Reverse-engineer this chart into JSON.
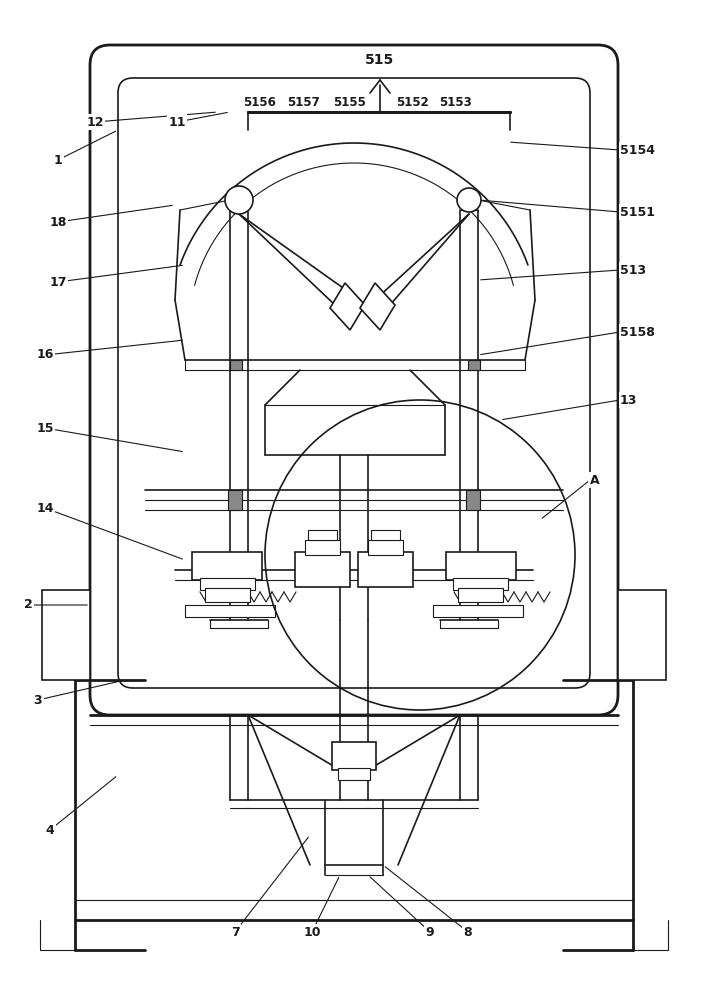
{
  "bg_color": "#ffffff",
  "line_color": "#1a1a1a",
  "lw_thin": 0.8,
  "lw_med": 1.2,
  "lw_thick": 2.0,
  "fig_width": 7.08,
  "fig_height": 10.0
}
